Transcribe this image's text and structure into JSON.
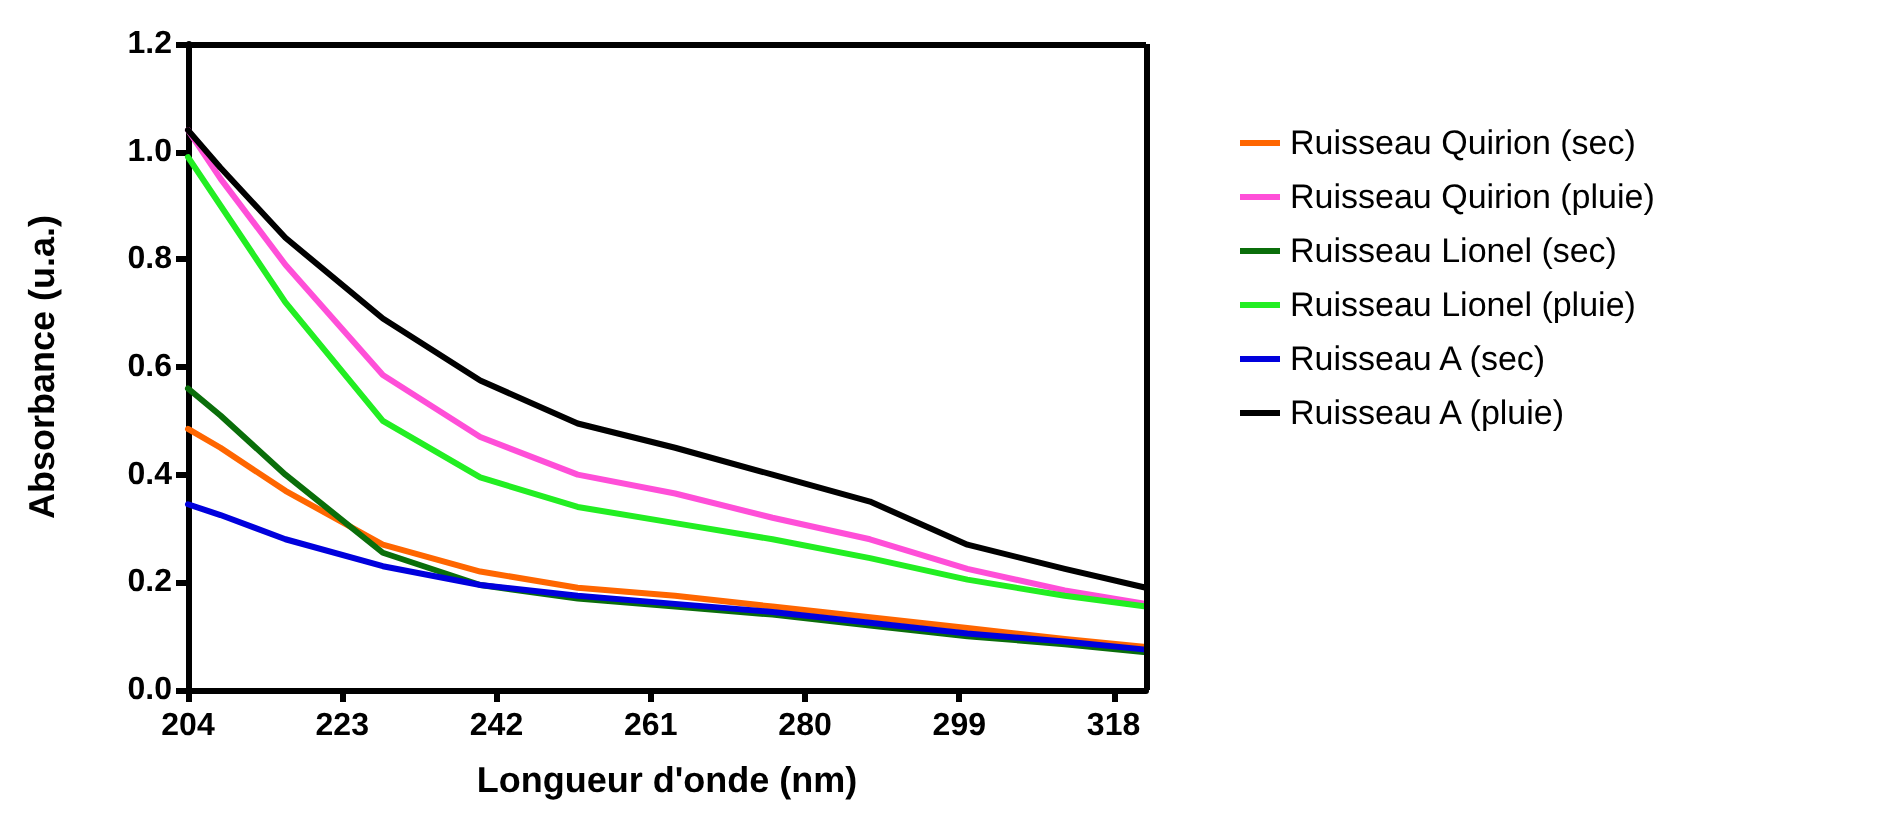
{
  "chart_data": {
    "type": "line",
    "xlabel": "Longueur d'onde (nm)",
    "ylabel": "Absorbance (u.a.)",
    "x": [
      204,
      208,
      216,
      228,
      240,
      252,
      264,
      276,
      288,
      300,
      312,
      322
    ],
    "series": [
      {
        "name": "Ruisseau Quirion (sec)",
        "color": "#ff6600",
        "values": [
          0.485,
          0.45,
          0.37,
          0.27,
          0.22,
          0.19,
          0.175,
          0.155,
          0.135,
          0.115,
          0.095,
          0.08
        ]
      },
      {
        "name": "Ruisseau Quirion (pluie)",
        "color": "#ff4fd8",
        "values": [
          1.04,
          0.95,
          0.79,
          0.585,
          0.47,
          0.4,
          0.365,
          0.32,
          0.28,
          0.225,
          0.185,
          0.16
        ]
      },
      {
        "name": "Ruisseau Lionel (sec)",
        "color": "#0a6e0a",
        "values": [
          0.56,
          0.51,
          0.4,
          0.255,
          0.195,
          0.17,
          0.155,
          0.14,
          0.12,
          0.1,
          0.085,
          0.07
        ]
      },
      {
        "name": "Ruisseau Lionel (pluie)",
        "color": "#22ee22",
        "values": [
          0.99,
          0.9,
          0.72,
          0.5,
          0.395,
          0.34,
          0.31,
          0.28,
          0.245,
          0.205,
          0.175,
          0.155
        ]
      },
      {
        "name": "Ruisseau A (sec)",
        "color": "#0000dd",
        "values": [
          0.345,
          0.325,
          0.28,
          0.23,
          0.195,
          0.175,
          0.16,
          0.145,
          0.125,
          0.105,
          0.09,
          0.075
        ]
      },
      {
        "name": "Ruisseau A (pluie)",
        "color": "#000000",
        "values": [
          1.04,
          0.97,
          0.84,
          0.69,
          0.575,
          0.495,
          0.45,
          0.4,
          0.35,
          0.27,
          0.225,
          0.19
        ]
      }
    ],
    "xlim": [
      204,
      322
    ],
    "xticks": [
      204,
      223,
      242,
      261,
      280,
      299,
      318
    ],
    "ylim": [
      0,
      1.2
    ],
    "yticks": [
      {
        "value": 0,
        "label": "0.0"
      },
      0.2,
      0.4,
      0.6,
      0.8,
      {
        "value": 1,
        "label": "1.0"
      },
      1.2
    ],
    "grid": false,
    "legend": "right",
    "marker": "none",
    "line_style": "solid"
  }
}
